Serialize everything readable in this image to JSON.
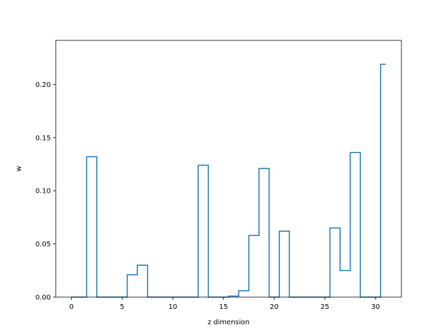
{
  "chart_data": {
    "type": "line",
    "drawstyle": "steps-mid",
    "xlabel": "z dimension",
    "ylabel": "w",
    "xlim": [
      -1.55,
      32.55
    ],
    "ylim": [
      0.0,
      0.2415
    ],
    "xticks": [
      0,
      5,
      10,
      15,
      20,
      25,
      30
    ],
    "yticks": [
      0.0,
      0.05,
      0.1,
      0.15,
      0.2
    ],
    "ytick_labels": [
      "0.00",
      "0.05",
      "0.10",
      "0.15",
      "0.20"
    ],
    "grid": false,
    "line_color": "#1f77b4",
    "series": [
      {
        "x": [
          0,
          1,
          2,
          3,
          4,
          5,
          6,
          7,
          8,
          9,
          10,
          11,
          12,
          13,
          14,
          15,
          16,
          17,
          18,
          19,
          20,
          21,
          22,
          23,
          24,
          25,
          26,
          27,
          28,
          29,
          30,
          31
        ],
        "values": [
          0,
          0,
          0.132,
          0,
          0,
          0,
          0.021,
          0.03,
          0,
          0,
          0,
          0,
          0,
          0.124,
          0,
          0,
          0.001,
          0.006,
          0.058,
          0.121,
          0,
          0.062,
          0,
          0,
          0,
          0,
          0.065,
          0.025,
          0.136,
          0,
          0,
          0.219
        ]
      }
    ]
  }
}
